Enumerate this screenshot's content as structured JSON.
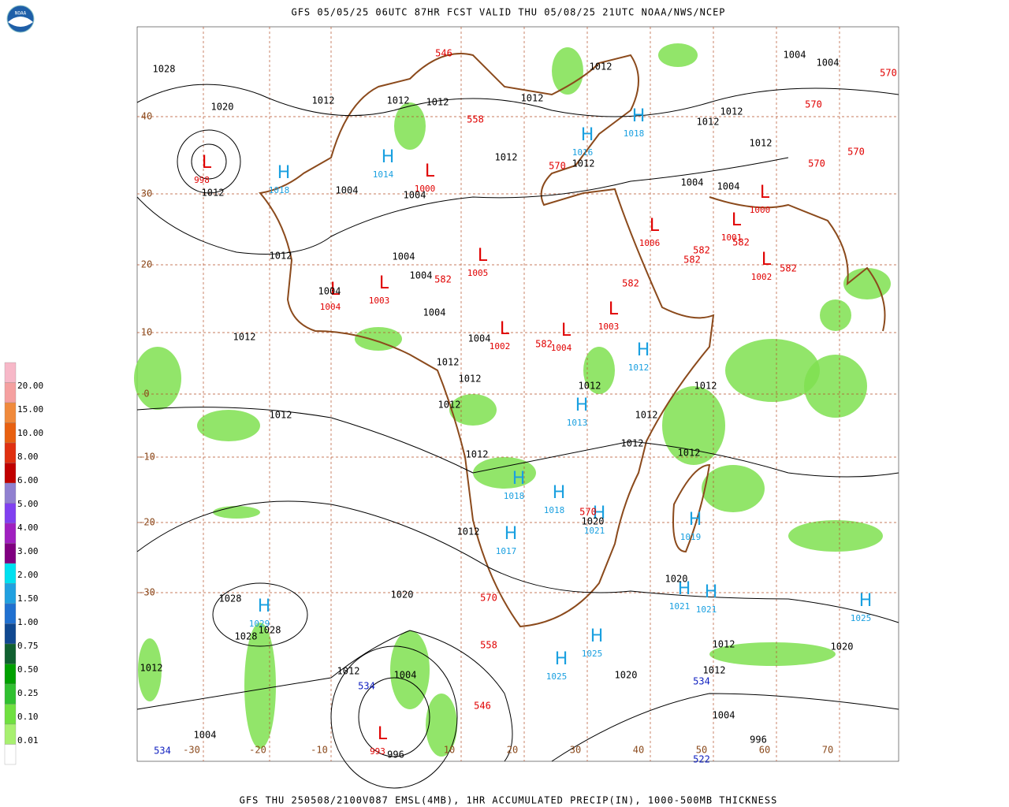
{
  "header": {
    "logo": "NOAA",
    "title": "GFS 05/05/25 06UTC 87HR FCST VALID THU 05/08/25 21UTC NOAA/NWS/NCEP"
  },
  "footer": {
    "text": "GFS THU 250508/2100V087 EMSL(4MB), 1HR ACCUMULATED PRECIP(IN), 1000-500MB THICKNESS"
  },
  "legend": {
    "labels": [
      "20.00",
      "15.00",
      "10.00",
      "8.00",
      "6.00",
      "5.00",
      "4.00",
      "3.00",
      "2.00",
      "1.50",
      "1.00",
      "0.75",
      "0.50",
      "0.25",
      "0.10",
      "0.01"
    ]
  },
  "centers": [
    {
      "symbol": "H",
      "value": "1018"
    },
    {
      "symbol": "H",
      "value": "1014"
    },
    {
      "symbol": "H",
      "value": "1016"
    },
    {
      "symbol": "H",
      "value": "1018"
    },
    {
      "symbol": "H",
      "value": "1012"
    },
    {
      "symbol": "H",
      "value": "1013"
    },
    {
      "symbol": "H",
      "value": "1018"
    },
    {
      "symbol": "H",
      "value": "1018"
    },
    {
      "symbol": "H",
      "value": "1021"
    },
    {
      "symbol": "H",
      "value": "1017"
    },
    {
      "symbol": "H",
      "value": "1019"
    },
    {
      "symbol": "H",
      "value": "1021"
    },
    {
      "symbol": "H",
      "value": "1021"
    },
    {
      "symbol": "H",
      "value": "1025"
    },
    {
      "symbol": "H",
      "value": "1029"
    },
    {
      "symbol": "H",
      "value": "1025"
    },
    {
      "symbol": "H",
      "value": "1025"
    },
    {
      "symbol": "L",
      "value": "1000"
    },
    {
      "symbol": "L",
      "value": "1005"
    },
    {
      "symbol": "L",
      "value": "1004"
    },
    {
      "symbol": "L",
      "value": "1003"
    },
    {
      "symbol": "L",
      "value": "1002"
    },
    {
      "symbol": "L",
      "value": "1004"
    },
    {
      "symbol": "L",
      "value": "1003"
    },
    {
      "symbol": "L",
      "value": "1006"
    },
    {
      "symbol": "L",
      "value": "1000"
    },
    {
      "symbol": "L",
      "value": "1001"
    },
    {
      "symbol": "L",
      "value": "1002"
    },
    {
      "symbol": "L",
      "value": "998"
    },
    {
      "symbol": "L",
      "value": "993"
    }
  ],
  "isobar_labels": [
    "1028",
    "1020",
    "1012",
    "1012",
    "1012",
    "1012",
    "1012",
    "1004",
    "1004",
    "1012",
    "1012",
    "1012",
    "1012",
    "1012",
    "1004",
    "1004",
    "1004",
    "1004",
    "1012",
    "1012",
    "1004",
    "1004",
    "1004",
    "1004",
    "1004",
    "1012",
    "1012",
    "1012",
    "1012",
    "1012",
    "1012",
    "1012",
    "1012",
    "1012",
    "1012",
    "1012",
    "1012",
    "1020",
    "1020",
    "1020",
    "1028",
    "1028",
    "1028",
    "1012",
    "1012",
    "1004",
    "1012",
    "1020",
    "1012",
    "1020",
    "1004",
    "1004",
    "996",
    "996"
  ],
  "thickness_warm": [
    "546",
    "558",
    "570",
    "582",
    "582",
    "582",
    "582",
    "582",
    "582",
    "582",
    "570",
    "570",
    "570",
    "570",
    "570",
    "558",
    "546",
    "570"
  ],
  "thickness_cold": [
    "534",
    "534",
    "534",
    "522"
  ],
  "lat_labels": [
    40,
    30,
    20,
    10,
    0,
    -10,
    -20,
    -30
  ],
  "lon_labels": [
    -30,
    -20,
    -10,
    10,
    20,
    30,
    40,
    50,
    60,
    70
  ]
}
